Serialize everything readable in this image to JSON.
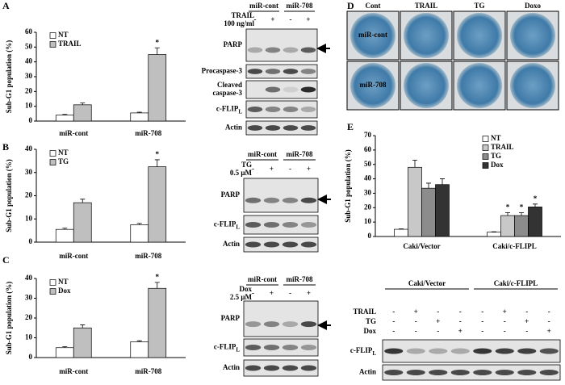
{
  "panel_labels": [
    "A",
    "B",
    "C",
    "D",
    "E"
  ],
  "chart_data": [
    {
      "type": "bar",
      "ylabel": "Sub-G1 population (%)",
      "categories": [
        "miR-cont",
        "miR-708"
      ],
      "ylim": [
        0,
        60
      ],
      "yticks": [
        0,
        10,
        20,
        30,
        40,
        50,
        60
      ],
      "legend": "upper left",
      "series": [
        {
          "name": "NT",
          "color": "#ffffff",
          "values": [
            4,
            5.5
          ],
          "errors": [
            0.5,
            0.5
          ],
          "annotations": [
            null,
            null
          ]
        },
        {
          "name": "TRAIL",
          "color": "#bfbfbf",
          "values": [
            11,
            45
          ],
          "errors": [
            1.2,
            4.5
          ],
          "annotations": [
            null,
            "*"
          ]
        }
      ]
    },
    {
      "type": "bar",
      "ylabel": "Sub-G1 population (%)",
      "categories": [
        "miR-cont",
        "miR-708"
      ],
      "ylim": [
        0,
        40
      ],
      "yticks": [
        0,
        10,
        20,
        30,
        40
      ],
      "legend": "upper left",
      "series": [
        {
          "name": "NT",
          "color": "#ffffff",
          "values": [
            5.5,
            7.5
          ],
          "errors": [
            0.5,
            0.6
          ],
          "annotations": [
            null,
            null
          ]
        },
        {
          "name": "TG",
          "color": "#bfbfbf",
          "values": [
            17,
            32.5
          ],
          "errors": [
            1.5,
            3
          ],
          "annotations": [
            null,
            "*"
          ]
        }
      ]
    },
    {
      "type": "bar",
      "ylabel": "Sub-G1 population (%)",
      "categories": [
        "miR-cont",
        "miR-708"
      ],
      "ylim": [
        0,
        40
      ],
      "yticks": [
        0,
        10,
        20,
        30,
        40
      ],
      "legend": "upper left",
      "series": [
        {
          "name": "NT",
          "color": "#ffffff",
          "values": [
            5,
            8
          ],
          "errors": [
            0.5,
            0.5
          ],
          "annotations": [
            null,
            null
          ]
        },
        {
          "name": "Dox",
          "color": "#bfbfbf",
          "values": [
            15,
            35
          ],
          "errors": [
            1.5,
            3
          ],
          "annotations": [
            null,
            "*"
          ]
        }
      ]
    },
    {
      "type": "bar",
      "ylabel": "Sub-G1 population (%)",
      "categories": [
        "Caki/Vector",
        "Caki/c-FLIPL"
      ],
      "ylim": [
        0,
        70
      ],
      "yticks": [
        0,
        10,
        20,
        30,
        40,
        50,
        60,
        70
      ],
      "legend": "upper right",
      "series": [
        {
          "name": "NT",
          "color": "#ffffff",
          "values": [
            5,
            3
          ],
          "errors": [
            0.3,
            0.3
          ],
          "annotations": [
            null,
            null
          ]
        },
        {
          "name": "TRAIL",
          "color": "#c8c8c8",
          "values": [
            48,
            14.5
          ],
          "errors": [
            5,
            2
          ],
          "annotations": [
            null,
            "*"
          ]
        },
        {
          "name": "TG",
          "color": "#8c8c8c",
          "values": [
            33.5,
            14.5
          ],
          "errors": [
            3.5,
            2
          ],
          "annotations": [
            null,
            "*"
          ]
        },
        {
          "name": "Dox",
          "color": "#333333",
          "values": [
            36,
            20.5
          ],
          "errors": [
            4,
            2
          ],
          "annotations": [
            null,
            "*"
          ]
        }
      ]
    }
  ],
  "blots": [
    {
      "groups": [
        "miR-cont",
        "miR-708"
      ],
      "treatments": [
        {
          "label": [
            "TRAIL",
            "100 ng/ml"
          ],
          "signs": [
            "-",
            "+",
            "-",
            "+"
          ]
        }
      ],
      "rows": [
        {
          "label": [
            "PARP"
          ]
        },
        {
          "label": [
            "Procaspase-3"
          ]
        },
        {
          "label": [
            "Cleaved",
            "caspase-3"
          ]
        },
        {
          "label": [
            "c-FLIP"
          ],
          "sub": "L"
        },
        {
          "label": [
            "Actin"
          ]
        }
      ]
    },
    {
      "groups": [
        "miR-cont",
        "miR-708"
      ],
      "treatments": [
        {
          "label": [
            "TG",
            "0.5 μM"
          ],
          "signs": [
            "-",
            "+",
            "-",
            "+"
          ]
        }
      ],
      "rows": [
        {
          "label": [
            "PARP"
          ]
        },
        {
          "label": [
            "c-FLIP"
          ],
          "sub": "L"
        },
        {
          "label": [
            "Actin"
          ]
        }
      ]
    },
    {
      "groups": [
        "miR-cont",
        "miR-708"
      ],
      "treatments": [
        {
          "label": [
            "Dox",
            "2.5 μM"
          ],
          "signs": [
            "-",
            "+",
            "-",
            "+"
          ]
        }
      ],
      "rows": [
        {
          "label": [
            "PARP"
          ]
        },
        {
          "label": [
            "c-FLIP"
          ],
          "sub": "L"
        },
        {
          "label": [
            "Actin"
          ]
        }
      ]
    },
    {
      "groups": [
        "Caki/Vector",
        "Caki/c-FLIPL"
      ],
      "treatments": [
        {
          "label": [
            "TRAIL"
          ],
          "signs": [
            "-",
            "+",
            "-",
            "-",
            "-",
            "+",
            "-",
            "-"
          ]
        },
        {
          "label": [
            "TG"
          ],
          "signs": [
            "-",
            "-",
            "+",
            "-",
            "-",
            "-",
            "+",
            "-"
          ]
        },
        {
          "label": [
            "Dox"
          ],
          "signs": [
            "-",
            "-",
            "-",
            "+",
            "-",
            "-",
            "-",
            "+"
          ]
        }
      ],
      "rows": [
        {
          "label": [
            "c-FLIP"
          ],
          "sub": "L"
        },
        {
          "label": [
            "Actin"
          ]
        }
      ]
    }
  ],
  "photo": {
    "columns": [
      "Cont",
      "TRAIL",
      "TG",
      "Doxo"
    ],
    "rows": [
      "miR-cont",
      "miR-708"
    ]
  }
}
